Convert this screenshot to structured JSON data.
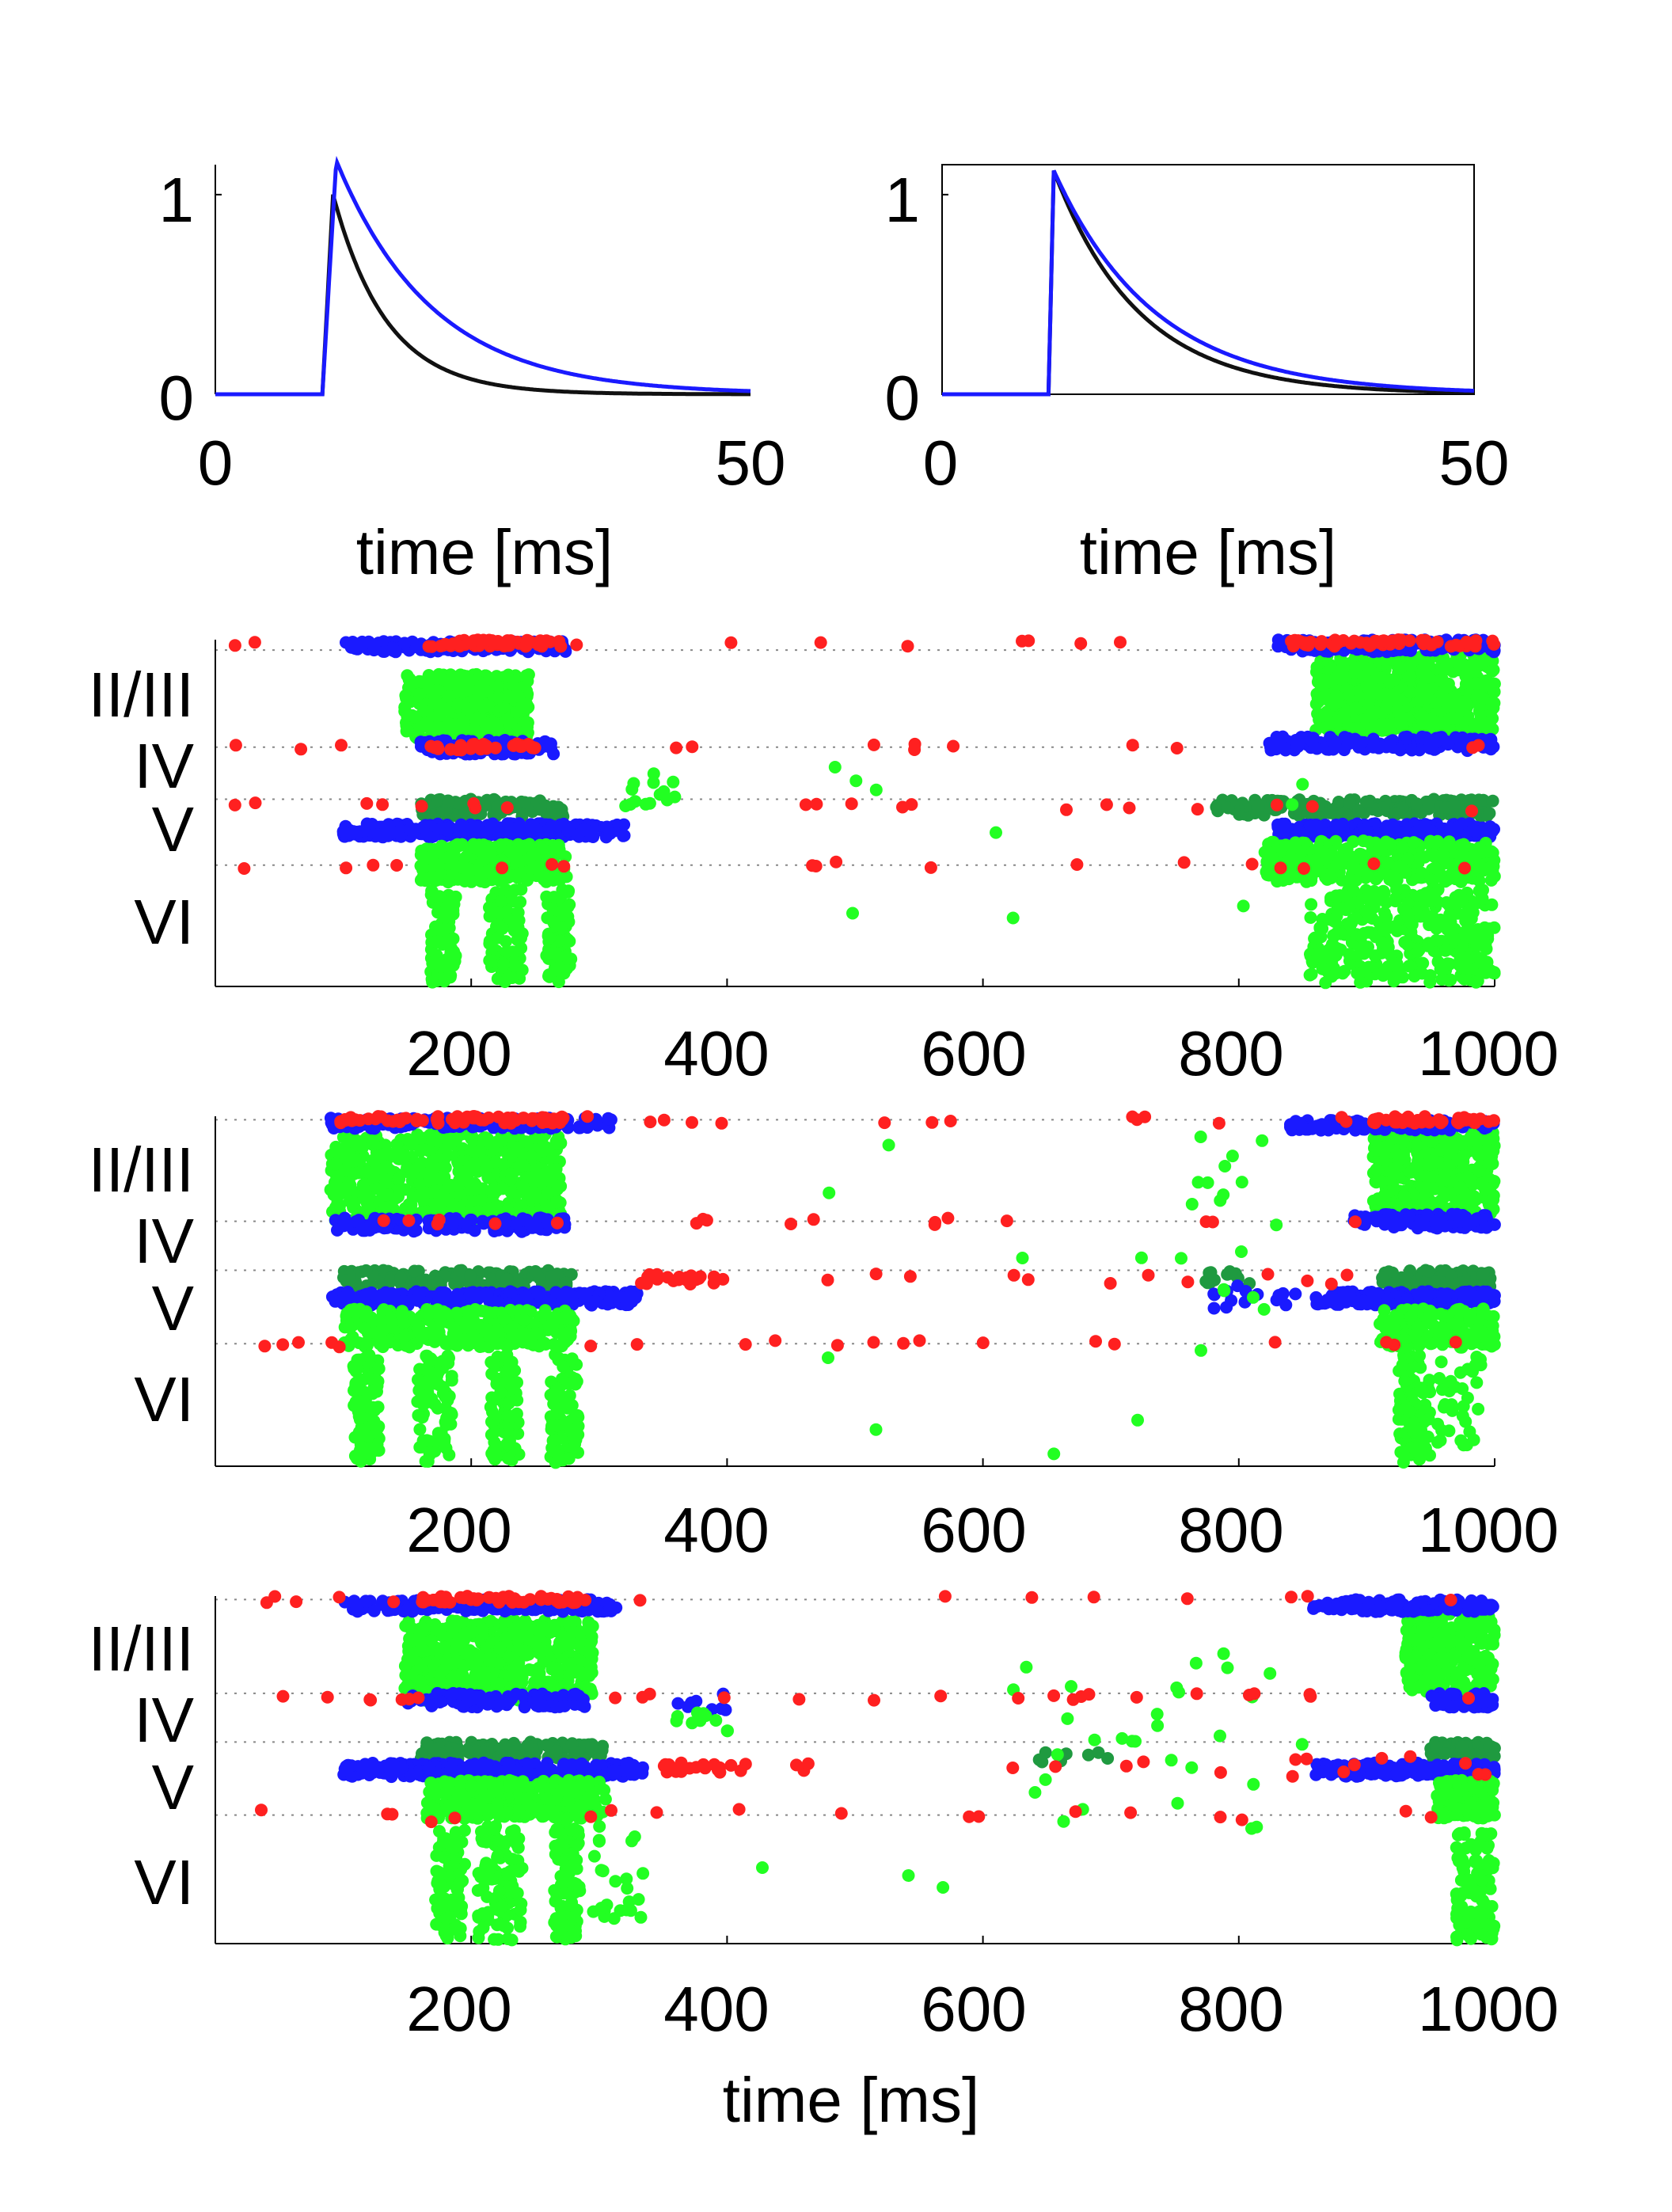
{
  "colors": {
    "black": "#111111",
    "blue": "#1a1aff",
    "red": "#ff2020",
    "light_green": "#22ff22",
    "dark_green": "#1f9a40",
    "grid": "#888888"
  },
  "chart_data": [
    {
      "type": "line",
      "panel": "top-left",
      "x_ticks": [
        "0",
        "50"
      ],
      "y_ticks": [
        "0",
        "1"
      ],
      "xlabel": "time [ms]",
      "xlim": [
        0,
        50
      ],
      "ylim": [
        0,
        1.15
      ],
      "series": [
        {
          "color": "black",
          "onset": 10,
          "peak_time": 11,
          "peak": 1.0,
          "tau": 5
        },
        {
          "color": "blue",
          "onset": 10,
          "peak_time": 11.3,
          "peak": 1.17,
          "tau": 9
        }
      ]
    },
    {
      "type": "line",
      "panel": "top-right",
      "x_ticks": [
        "0",
        "50"
      ],
      "y_ticks": [
        "0",
        "1"
      ],
      "xlabel": "time [ms]",
      "xlim": [
        0,
        50
      ],
      "ylim": [
        0,
        1.15
      ],
      "series": [
        {
          "color": "black",
          "onset": 10,
          "peak_time": 10.5,
          "peak": 1.12,
          "tau": 8
        },
        {
          "color": "blue",
          "onset": 10,
          "peak_time": 10.5,
          "peak": 1.12,
          "tau": 9.5
        }
      ]
    },
    {
      "type": "scatter",
      "panel": "raster-1",
      "x_ticks": [
        "200",
        "400",
        "600",
        "800",
        "1000"
      ],
      "layer_labels": [
        "II/III",
        "IV",
        "V",
        "VI"
      ],
      "xlabel": "",
      "xlim": [
        0,
        1000
      ],
      "ylim": [
        0,
        1
      ],
      "boundaries": [
        0.03,
        0.31,
        0.46,
        0.65
      ],
      "blocks": [
        {
          "color": "light_green",
          "x": [
            148,
            245
          ],
          "y": [
            0.1,
            0.31
          ],
          "n": 500
        },
        {
          "color": "blue",
          "x": [
            100,
            275
          ],
          "y": [
            0.005,
            0.035
          ],
          "n": 160
        },
        {
          "color": "blue",
          "x": [
            160,
            265
          ],
          "y": [
            0.29,
            0.33
          ],
          "n": 110
        },
        {
          "color": "red",
          "x": [
            165,
            270
          ],
          "y": [
            0.0,
            0.02
          ],
          "n": 60
        },
        {
          "color": "red",
          "x": [
            168,
            255
          ],
          "y": [
            0.3,
            0.32
          ],
          "n": 30
        },
        {
          "color": "dark_green",
          "x": [
            160,
            275
          ],
          "y": [
            0.46,
            0.51
          ],
          "n": 120
        },
        {
          "color": "blue",
          "x": [
            100,
            320
          ],
          "y": [
            0.53,
            0.57
          ],
          "n": 280
        },
        {
          "color": "light_green",
          "x": [
            160,
            275
          ],
          "y": [
            0.59,
            0.7
          ],
          "n": 280
        },
        {
          "color": "light_green",
          "x": [
            168,
            188
          ],
          "y": [
            0.72,
            0.99
          ],
          "n": 80
        },
        {
          "color": "light_green",
          "x": [
            214,
            240
          ],
          "y": [
            0.72,
            0.99
          ],
          "n": 80
        },
        {
          "color": "light_green",
          "x": [
            258,
            278
          ],
          "y": [
            0.72,
            0.99
          ],
          "n": 80
        },
        {
          "color": "light_green",
          "x": [
            860,
            1000
          ],
          "y": [
            0.04,
            0.27
          ],
          "n": 600
        },
        {
          "color": "blue",
          "x": [
            830,
            1000
          ],
          "y": [
            0.0,
            0.035
          ],
          "n": 180
        },
        {
          "color": "blue",
          "x": [
            820,
            1000
          ],
          "y": [
            0.28,
            0.32
          ],
          "n": 150
        },
        {
          "color": "red",
          "x": [
            840,
            1000
          ],
          "y": [
            0.0,
            0.02
          ],
          "n": 60
        },
        {
          "color": "dark_green",
          "x": [
            780,
            1000
          ],
          "y": [
            0.46,
            0.51
          ],
          "n": 180
        },
        {
          "color": "blue",
          "x": [
            830,
            1000
          ],
          "y": [
            0.53,
            0.57
          ],
          "n": 200
        },
        {
          "color": "light_green",
          "x": [
            820,
            1000
          ],
          "y": [
            0.58,
            0.7
          ],
          "n": 320
        },
        {
          "color": "light_green",
          "x": [
            855,
            1000
          ],
          "y": [
            0.72,
            0.99
          ],
          "n": 330
        },
        {
          "color": "red",
          "x": [
            0,
            1000
          ],
          "y": [
            0.0,
            0.02
          ],
          "n": 14
        },
        {
          "color": "red",
          "x": [
            0,
            1000
          ],
          "y": [
            0.3,
            0.32
          ],
          "n": 14
        },
        {
          "color": "red",
          "x": [
            0,
            1000
          ],
          "y": [
            0.47,
            0.5
          ],
          "n": 20
        },
        {
          "color": "red",
          "x": [
            0,
            1000
          ],
          "y": [
            0.64,
            0.66
          ],
          "n": 18
        },
        {
          "color": "light_green",
          "x": [
            320,
            360
          ],
          "y": [
            0.38,
            0.48
          ],
          "n": 14
        },
        {
          "color": "light_green",
          "x": [
            400,
            1000
          ],
          "y": [
            0.1,
            0.95
          ],
          "n": 10
        }
      ]
    },
    {
      "type": "scatter",
      "panel": "raster-2",
      "x_ticks": [
        "200",
        "400",
        "600",
        "800",
        "1000"
      ],
      "layer_labels": [
        "II/III",
        "IV",
        "V",
        "VI"
      ],
      "xlabel": "",
      "xlim": [
        0,
        1000
      ],
      "ylim": [
        0,
        1
      ],
      "boundaries": [
        0.01,
        0.3,
        0.44,
        0.65
      ],
      "blocks": [
        {
          "color": "light_green",
          "x": [
            90,
            270
          ],
          "y": [
            0.05,
            0.3
          ],
          "n": 650
        },
        {
          "color": "blue",
          "x": [
            90,
            310
          ],
          "y": [
            0.005,
            0.035
          ],
          "n": 180
        },
        {
          "color": "blue",
          "x": [
            90,
            275
          ],
          "y": [
            0.29,
            0.33
          ],
          "n": 130
        },
        {
          "color": "red",
          "x": [
            95,
            275
          ],
          "y": [
            0.0,
            0.02
          ],
          "n": 70
        },
        {
          "color": "dark_green",
          "x": [
            100,
            280
          ],
          "y": [
            0.44,
            0.49
          ],
          "n": 140
        },
        {
          "color": "blue",
          "x": [
            90,
            330
          ],
          "y": [
            0.5,
            0.54
          ],
          "n": 280
        },
        {
          "color": "light_green",
          "x": [
            100,
            280
          ],
          "y": [
            0.55,
            0.66
          ],
          "n": 320
        },
        {
          "color": "light_green",
          "x": [
            108,
            128
          ],
          "y": [
            0.68,
            0.99
          ],
          "n": 90
        },
        {
          "color": "light_green",
          "x": [
            158,
            185
          ],
          "y": [
            0.68,
            0.99
          ],
          "n": 90
        },
        {
          "color": "light_green",
          "x": [
            215,
            238
          ],
          "y": [
            0.68,
            0.99
          ],
          "n": 90
        },
        {
          "color": "light_green",
          "x": [
            262,
            284
          ],
          "y": [
            0.68,
            0.99
          ],
          "n": 90
        },
        {
          "color": "light_green",
          "x": [
            905,
            1000
          ],
          "y": [
            0.04,
            0.28
          ],
          "n": 420
        },
        {
          "color": "blue",
          "x": [
            840,
            1000
          ],
          "y": [
            0.01,
            0.04
          ],
          "n": 150
        },
        {
          "color": "blue",
          "x": [
            890,
            1000
          ],
          "y": [
            0.28,
            0.32
          ],
          "n": 100
        },
        {
          "color": "red",
          "x": [
            905,
            1000
          ],
          "y": [
            0.0,
            0.02
          ],
          "n": 40
        },
        {
          "color": "dark_green",
          "x": [
            910,
            1000
          ],
          "y": [
            0.44,
            0.49
          ],
          "n": 100
        },
        {
          "color": "blue",
          "x": [
            860,
            1000
          ],
          "y": [
            0.5,
            0.54
          ],
          "n": 200
        },
        {
          "color": "light_green",
          "x": [
            910,
            1000
          ],
          "y": [
            0.55,
            0.66
          ],
          "n": 200
        },
        {
          "color": "light_green",
          "x": [
            925,
            950
          ],
          "y": [
            0.68,
            0.99
          ],
          "n": 90
        },
        {
          "color": "light_green",
          "x": [
            955,
            990
          ],
          "y": [
            0.68,
            0.95
          ],
          "n": 40
        },
        {
          "color": "dark_green",
          "x": [
            770,
            810
          ],
          "y": [
            0.44,
            0.48
          ],
          "n": 14
        },
        {
          "color": "blue",
          "x": [
            780,
            850
          ],
          "y": [
            0.48,
            0.55
          ],
          "n": 16
        },
        {
          "color": "light_green",
          "x": [
            760,
            820
          ],
          "y": [
            0.05,
            0.6
          ],
          "n": 14
        },
        {
          "color": "red",
          "x": [
            0,
            1000
          ],
          "y": [
            0.0,
            0.02
          ],
          "n": 16
        },
        {
          "color": "red",
          "x": [
            0,
            1000
          ],
          "y": [
            0.29,
            0.31
          ],
          "n": 18
        },
        {
          "color": "red",
          "x": [
            330,
            400
          ],
          "y": [
            0.45,
            0.48
          ],
          "n": 20
        },
        {
          "color": "red",
          "x": [
            400,
            1000
          ],
          "y": [
            0.45,
            0.48
          ],
          "n": 12
        },
        {
          "color": "red",
          "x": [
            0,
            1000
          ],
          "y": [
            0.64,
            0.66
          ],
          "n": 20
        },
        {
          "color": "light_green",
          "x": [
            400,
            1000
          ],
          "y": [
            0.05,
            1.0
          ],
          "n": 12
        }
      ]
    },
    {
      "type": "scatter",
      "panel": "raster-3",
      "x_ticks": [
        "200",
        "400",
        "600",
        "800",
        "1000"
      ],
      "layer_labels": [
        "II/III",
        "IV",
        "V",
        "VI"
      ],
      "xlabel": "time [ms]",
      "xlim": [
        0,
        1000
      ],
      "ylim": [
        0,
        1
      ],
      "boundaries": [
        0.01,
        0.28,
        0.42,
        0.63
      ],
      "blocks": [
        {
          "color": "light_green",
          "x": [
            148,
            295
          ],
          "y": [
            0.07,
            0.3
          ],
          "n": 600
        },
        {
          "color": "blue",
          "x": [
            100,
            315
          ],
          "y": [
            0.01,
            0.045
          ],
          "n": 180
        },
        {
          "color": "blue",
          "x": [
            150,
            290
          ],
          "y": [
            0.28,
            0.32
          ],
          "n": 120
        },
        {
          "color": "red",
          "x": [
            160,
            290
          ],
          "y": [
            0.0,
            0.02
          ],
          "n": 60
        },
        {
          "color": "dark_green",
          "x": [
            160,
            305
          ],
          "y": [
            0.42,
            0.47
          ],
          "n": 140
        },
        {
          "color": "blue",
          "x": [
            100,
            335
          ],
          "y": [
            0.48,
            0.52
          ],
          "n": 300
        },
        {
          "color": "light_green",
          "x": [
            165,
            305
          ],
          "y": [
            0.53,
            0.64
          ],
          "n": 320
        },
        {
          "color": "light_green",
          "x": [
            172,
            195
          ],
          "y": [
            0.66,
            0.99
          ],
          "n": 90
        },
        {
          "color": "light_green",
          "x": [
            205,
            240
          ],
          "y": [
            0.66,
            0.99
          ],
          "n": 100
        },
        {
          "color": "light_green",
          "x": [
            265,
            285
          ],
          "y": [
            0.66,
            0.99
          ],
          "n": 90
        },
        {
          "color": "light_green",
          "x": [
            295,
            335
          ],
          "y": [
            0.66,
            0.93
          ],
          "n": 24
        },
        {
          "color": "light_green",
          "x": [
            930,
            1000
          ],
          "y": [
            0.05,
            0.28
          ],
          "n": 300
        },
        {
          "color": "blue",
          "x": [
            855,
            1000
          ],
          "y": [
            0.01,
            0.045
          ],
          "n": 120
        },
        {
          "color": "blue",
          "x": [
            950,
            1000
          ],
          "y": [
            0.28,
            0.32
          ],
          "n": 60
        },
        {
          "color": "dark_green",
          "x": [
            950,
            1000
          ],
          "y": [
            0.42,
            0.47
          ],
          "n": 60
        },
        {
          "color": "blue",
          "x": [
            860,
            1000
          ],
          "y": [
            0.48,
            0.52
          ],
          "n": 180
        },
        {
          "color": "light_green",
          "x": [
            955,
            1000
          ],
          "y": [
            0.53,
            0.64
          ],
          "n": 120
        },
        {
          "color": "light_green",
          "x": [
            970,
            1000
          ],
          "y": [
            0.68,
            0.99
          ],
          "n": 110
        },
        {
          "color": "blue",
          "x": [
            360,
            400
          ],
          "y": [
            0.28,
            0.33
          ],
          "n": 8
        },
        {
          "color": "light_green",
          "x": [
            360,
            410
          ],
          "y": [
            0.33,
            0.41
          ],
          "n": 10
        },
        {
          "color": "dark_green",
          "x": [
            640,
            700
          ],
          "y": [
            0.44,
            0.48
          ],
          "n": 8
        },
        {
          "color": "light_green",
          "x": [
            620,
            860
          ],
          "y": [
            0.12,
            0.7
          ],
          "n": 30
        },
        {
          "color": "red",
          "x": [
            0,
            1000
          ],
          "y": [
            0.0,
            0.02
          ],
          "n": 14
        },
        {
          "color": "red",
          "x": [
            0,
            1000
          ],
          "y": [
            0.28,
            0.3
          ],
          "n": 26
        },
        {
          "color": "red",
          "x": [
            350,
            420
          ],
          "y": [
            0.48,
            0.51
          ],
          "n": 20
        },
        {
          "color": "red",
          "x": [
            420,
            1000
          ],
          "y": [
            0.46,
            0.52
          ],
          "n": 18
        },
        {
          "color": "red",
          "x": [
            0,
            1000
          ],
          "y": [
            0.61,
            0.65
          ],
          "n": 18
        },
        {
          "color": "light_green",
          "x": [
            400,
            600
          ],
          "y": [
            0.75,
            0.85
          ],
          "n": 3
        }
      ]
    }
  ]
}
